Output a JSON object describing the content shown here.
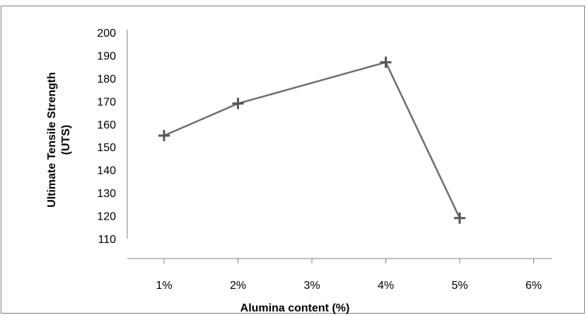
{
  "chart_data": {
    "type": "line",
    "title": "",
    "xlabel": "Alumina content (%)",
    "ylabel_lines": [
      "Ultimate Tensile Strength",
      "(UTS)"
    ],
    "categories": [
      "1%",
      "2%",
      "3%",
      "4%",
      "5%",
      "6%"
    ],
    "x": [
      1,
      2,
      4,
      5
    ],
    "values": [
      155,
      169,
      187,
      119
    ],
    "xlim": [
      0.5,
      6.25
    ],
    "ylim": [
      110,
      200
    ],
    "yticks": [
      110,
      120,
      130,
      140,
      150,
      160,
      170,
      180,
      190,
      200
    ],
    "grid": false,
    "legend": "none",
    "marker": "plus",
    "colors": {
      "line": "#6d6d6d",
      "marker": "#555555",
      "axis": "#808080"
    }
  }
}
